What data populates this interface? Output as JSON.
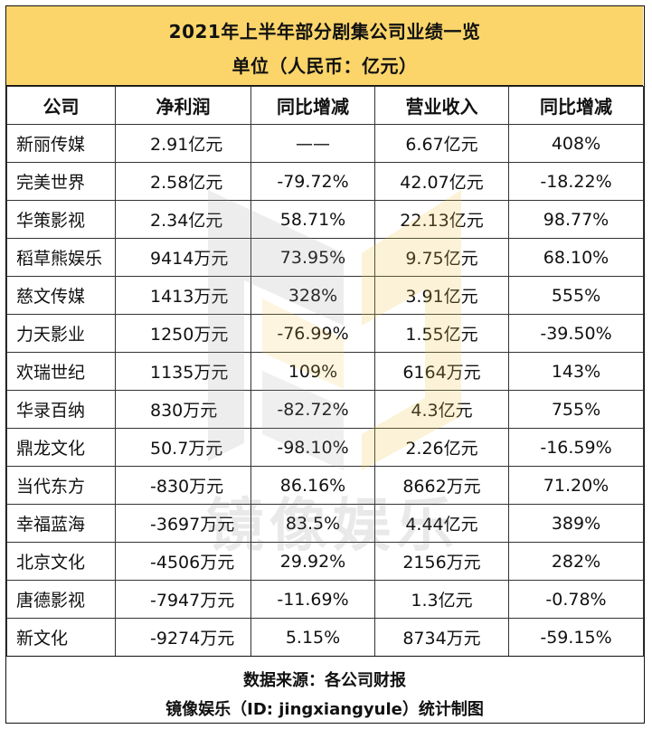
{
  "title": "2021年上半年部分剧集公司业绩一览",
  "subtitle": "单位（人民币：亿元）",
  "headers": [
    "公司",
    "净利润",
    "同比增减",
    "营业收入",
    "同比增减"
  ],
  "rows": [
    [
      "新丽传媒",
      "2.91亿元",
      "——",
      "6.67亿元",
      "408%"
    ],
    [
      "完美世界",
      "2.58亿元",
      "-79.72%",
      "42.07亿元",
      "-18.22%"
    ],
    [
      "华策影视",
      "2.34亿元",
      "58.71%",
      "22.13亿元",
      "98.77%"
    ],
    [
      "稻草熊娱乐",
      "9414万元",
      "73.95%",
      "9.75亿元",
      "68.10%"
    ],
    [
      "慈文传媒",
      "1413万元",
      "328%",
      "3.91亿元",
      "555%"
    ],
    [
      "力天影业",
      "1250万元",
      "-76.99%",
      "1.55亿元",
      "-39.50%"
    ],
    [
      "欢瑞世纪",
      "1135万元",
      "109%",
      "6164万元",
      "143%"
    ],
    [
      "华录百纳",
      "830万元",
      "-82.72%",
      "4.3亿元",
      "755%"
    ],
    [
      "鼎龙文化",
      "50.7万元",
      "-98.10%",
      "2.26亿元",
      "-16.59%"
    ],
    [
      "当代东方",
      "-830万元",
      "86.16%",
      "8662万元",
      "71.20%"
    ],
    [
      "幸福蓝海",
      "-3697万元",
      "83.5%",
      "4.44亿元",
      "389%"
    ],
    [
      "北京文化",
      "-4506万元",
      "29.92%",
      "2156万元",
      "282%"
    ],
    [
      "唐德影视",
      "-7947万元",
      "-11.69%",
      "1.3亿元",
      "-0.78%"
    ],
    [
      "新文化",
      "-9274万元",
      "5.15%",
      "8734万元",
      "-59.15%"
    ]
  ],
  "footer": {
    "source": "数据来源：各公司财报",
    "credit": "镜像娱乐（ID: jingxiangyule）统计制图"
  },
  "watermark": {
    "text": "镜像娱乐",
    "icon": "logo-icon",
    "colors": {
      "gold": "#f3c64b",
      "gray": "#9a9a9a"
    }
  },
  "colors": {
    "title_bg": "#fbd56a",
    "border": "#333333"
  }
}
